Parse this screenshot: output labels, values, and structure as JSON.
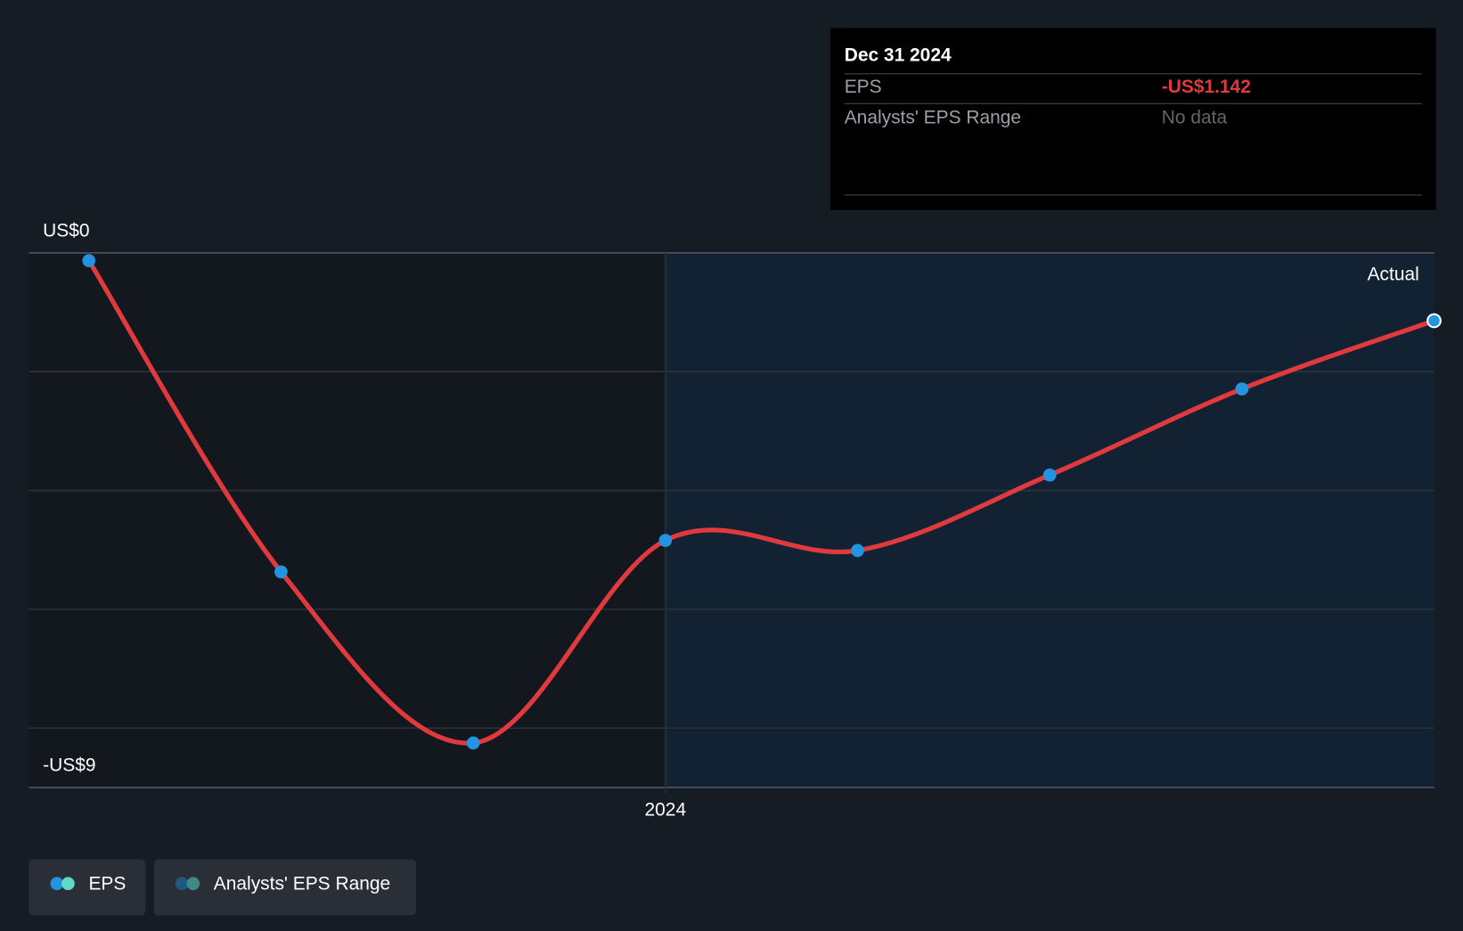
{
  "chart_data": {
    "type": "line",
    "x": [
      2023.25,
      2023.5,
      2023.75,
      2024,
      2024.25,
      2024.5,
      2024.75,
      2025
    ],
    "series": [
      {
        "name": "EPS",
        "color": "#e0393e",
        "values": [
          -0.13,
          -5.37,
          -8.25,
          -4.84,
          -5.01,
          -3.74,
          -2.29,
          -1.142
        ]
      }
    ],
    "legend_items": [
      {
        "name": "Analysts' EPS Range"
      }
    ],
    "xlim": [
      2023.172,
      2025.0
    ],
    "xticks": [
      2024
    ],
    "ylim": [
      -9,
      0
    ],
    "yticks": [
      {
        "value": 0,
        "label": "US$0"
      },
      {
        "value": -2,
        "label": null
      },
      {
        "value": -4,
        "label": null
      },
      {
        "value": -6,
        "label": null
      },
      {
        "value": -8,
        "label": null
      },
      {
        "value": -9,
        "label": "-US$9"
      }
    ],
    "grid": true,
    "region_label": "Actual",
    "tooltip": {
      "date": "Dec 31 2024",
      "rows": [
        {
          "label": "EPS",
          "value": "-US$1.142"
        },
        {
          "label": "Analysts' EPS Range",
          "value": "No data"
        }
      ]
    }
  }
}
